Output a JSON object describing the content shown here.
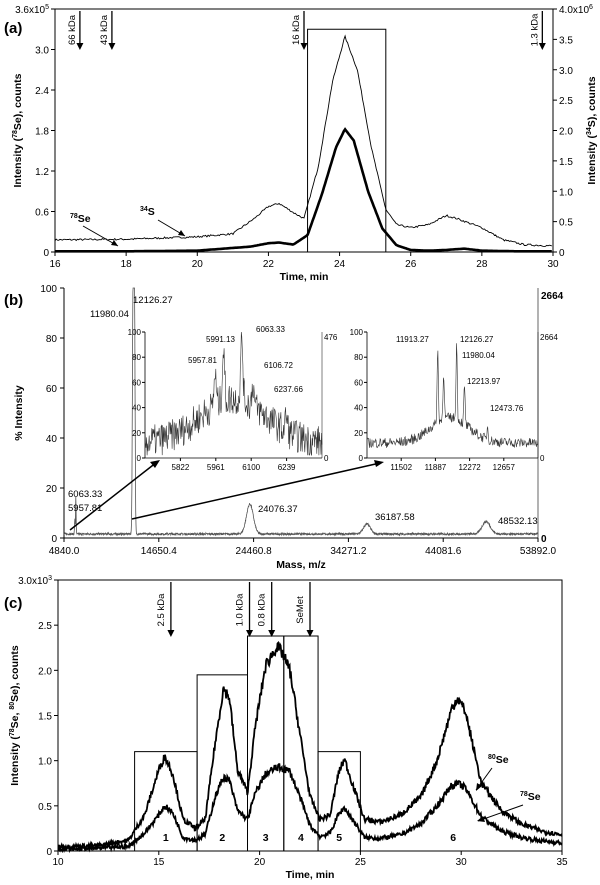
{
  "chart_data": [
    {
      "panel": "(a)",
      "type": "line",
      "xlabel": "Time, min",
      "ylabel_left": "Intensity (78Se), counts",
      "ylabel_right": "Intensity (34S), counts",
      "xlim": [
        16,
        30
      ],
      "ylim_left": [
        0,
        3.6
      ],
      "ylim_right": [
        0,
        4.0
      ],
      "x_ticks": [
        "16",
        "18",
        "20",
        "22",
        "24",
        "26",
        "28",
        "30"
      ],
      "y_ticks_left": [
        "0",
        "0.6",
        "1.2",
        "1.8",
        "2.4",
        "3.0",
        "3.6x10^5"
      ],
      "y_ticks_right": [
        "0",
        "0.5",
        "1.0",
        "1.5",
        "2.0",
        "2.5",
        "3.0",
        "3.5",
        "4.0x10^6"
      ],
      "series": [
        {
          "name": "78Se",
          "axis": "left",
          "style": "thick",
          "x": [
            16,
            18,
            20,
            21.5,
            22,
            22.3,
            22.7,
            23.1,
            23.5,
            23.9,
            24.15,
            24.4,
            24.8,
            25.2,
            25.6,
            26,
            26.5,
            27,
            27.5,
            28,
            29,
            30
          ],
          "y": [
            0.01,
            0.01,
            0.02,
            0.08,
            0.13,
            0.14,
            0.11,
            0.25,
            0.85,
            1.55,
            1.82,
            1.65,
            0.9,
            0.35,
            0.1,
            0.03,
            0.02,
            0.03,
            0.05,
            0.02,
            0.01,
            0.01
          ]
        },
        {
          "name": "34S",
          "axis": "right",
          "style": "thin",
          "x": [
            16,
            18,
            20,
            21,
            21.6,
            22,
            22.3,
            22.7,
            23,
            23.4,
            23.8,
            24.15,
            24.5,
            24.9,
            25.3,
            25.6,
            26,
            26.5,
            27,
            27.3,
            28,
            28.6,
            29.2,
            30
          ],
          "y": [
            0.2,
            0.21,
            0.25,
            0.3,
            0.55,
            0.75,
            0.8,
            0.65,
            0.55,
            1.4,
            2.8,
            3.55,
            3.0,
            1.7,
            0.7,
            0.45,
            0.4,
            0.45,
            0.6,
            0.55,
            0.4,
            0.2,
            0.12,
            0.1
          ]
        }
      ],
      "size_markers": [
        {
          "label": "66 kDa",
          "x": 16.7
        },
        {
          "label": "43 kDa",
          "x": 17.6
        },
        {
          "label": "16 kDa",
          "x": 23.0
        },
        {
          "label": "1.3 kDa",
          "x": 29.7
        }
      ],
      "collection_box": {
        "x_range": [
          23.1,
          25.3
        ],
        "y_top_left_units": 3.3
      },
      "series_labels": [
        "78Se",
        "34S"
      ]
    },
    {
      "panel": "(b)",
      "type": "line",
      "xlabel": "Mass, m/z",
      "ylabel": "% Intensity",
      "xlim": [
        4840.0,
        53892.0
      ],
      "ylim": [
        0,
        100
      ],
      "x_ticks": [
        "4840.0",
        "14650.4",
        "24460.8",
        "34271.2",
        "44081.6",
        "53892.0"
      ],
      "y_ticks": [
        "0",
        "20",
        "40",
        "60",
        "80",
        "100"
      ],
      "right_axis_labels": [
        "2664",
        "0"
      ],
      "peak_labels": [
        {
          "mass": 6063.33,
          "label": "6063.33",
          "intensity": 15
        },
        {
          "mass": 5957.81,
          "label": "5957.81",
          "intensity": 15
        },
        {
          "mass": 11980.04,
          "label": "11980.04",
          "intensity": 100
        },
        {
          "mass": 12126.27,
          "label": "12126.27",
          "intensity": 100
        },
        {
          "mass": 24076.37,
          "label": "24076.37",
          "intensity": 12
        },
        {
          "mass": 36187.58,
          "label": "36187.58",
          "intensity": 4
        },
        {
          "mass": 48532.13,
          "label": "48532.13",
          "intensity": 5
        }
      ],
      "insets": [
        {
          "name": "inset-low-mass",
          "xlim": [
            5683,
            6378
          ],
          "x_ticks": [
            "5822",
            "5961",
            "6100",
            "6239"
          ],
          "y_ticks": [
            "0",
            "20",
            "40",
            "60",
            "80",
            "100"
          ],
          "right_top_label": "476",
          "right_bottom_label": "0",
          "peak_labels": [
            {
              "mass": 5991.13,
              "label": "5991.13"
            },
            {
              "mass": 6063.33,
              "label": "6063.33"
            },
            {
              "mass": 5957.81,
              "label": "5957.81"
            },
            {
              "mass": 6106.72,
              "label": "6106.72"
            },
            {
              "mass": 6237.66,
              "label": "6237.66"
            }
          ]
        },
        {
          "name": "inset-high-mass",
          "xlim": [
            11117,
            13042
          ],
          "x_ticks": [
            "11502",
            "11887",
            "12272",
            "12657"
          ],
          "y_ticks": [
            "0",
            "20",
            "40",
            "60",
            "80",
            "100"
          ],
          "right_top_label": "2664",
          "right_bottom_label": "0",
          "peak_labels": [
            {
              "mass": 11913.27,
              "label": "11913.27"
            },
            {
              "mass": 12126.27,
              "label": "12126.27"
            },
            {
              "mass": 11980.04,
              "label": "11980.04"
            },
            {
              "mass": 12213.97,
              "label": "12213.97"
            },
            {
              "mass": 12473.76,
              "label": "12473.76"
            }
          ]
        }
      ]
    },
    {
      "panel": "(c)",
      "type": "line",
      "xlabel": "Time, min",
      "ylabel": "Intensity (78Se, 80Se), counts",
      "xlim": [
        10,
        35
      ],
      "ylim": [
        0,
        3.0
      ],
      "x_ticks": [
        "10",
        "15",
        "20",
        "25",
        "30",
        "35"
      ],
      "y_ticks": [
        "0",
        "0.5",
        "1.0",
        "1.5",
        "2.0",
        "2.5",
        "3.0x10^3"
      ],
      "series": [
        {
          "name": "80Se",
          "style": "thick",
          "x": [
            10,
            12,
            13.5,
            14.3,
            15,
            15.3,
            15.7,
            16.2,
            16.8,
            17.3,
            17.8,
            18.2,
            18.5,
            18.9,
            19.4,
            19.8,
            20.3,
            20.8,
            21.1,
            21.5,
            22.0,
            22.5,
            23.0,
            23.5,
            23.9,
            24.2,
            24.6,
            25.2,
            26,
            27,
            28,
            28.8,
            29.5,
            29.8,
            30.2,
            31,
            32,
            33,
            34,
            35
          ],
          "y": [
            0.05,
            0.06,
            0.12,
            0.4,
            0.9,
            1.05,
            0.85,
            0.35,
            0.25,
            0.35,
            1.2,
            1.8,
            1.7,
            0.9,
            0.65,
            1.4,
            2.05,
            2.25,
            2.2,
            2.0,
            1.3,
            0.6,
            0.35,
            0.4,
            0.85,
            1.02,
            0.75,
            0.35,
            0.32,
            0.4,
            0.6,
            1.0,
            1.55,
            1.7,
            1.55,
            0.75,
            0.45,
            0.3,
            0.22,
            0.18
          ]
        },
        {
          "name": "78Se",
          "style": "thick",
          "x": [
            10,
            12,
            13.5,
            14.3,
            15,
            15.3,
            15.7,
            16.2,
            16.8,
            17.3,
            17.8,
            18.2,
            18.5,
            18.9,
            19.4,
            19.8,
            20.3,
            20.8,
            21.1,
            21.5,
            22.0,
            22.5,
            23.0,
            23.5,
            23.9,
            24.2,
            24.6,
            25.2,
            26,
            27,
            28,
            28.8,
            29.5,
            29.8,
            30.2,
            31,
            32,
            33,
            34,
            35
          ],
          "y": [
            0.02,
            0.03,
            0.05,
            0.2,
            0.4,
            0.5,
            0.42,
            0.15,
            0.12,
            0.18,
            0.6,
            0.82,
            0.78,
            0.45,
            0.35,
            0.65,
            0.85,
            0.92,
            0.92,
            0.88,
            0.6,
            0.28,
            0.16,
            0.2,
            0.4,
            0.48,
            0.35,
            0.15,
            0.14,
            0.18,
            0.3,
            0.5,
            0.72,
            0.75,
            0.7,
            0.38,
            0.22,
            0.15,
            0.11,
            0.09
          ]
        }
      ],
      "size_markers": [
        {
          "label": "2.5 kDa",
          "x": 15.6
        },
        {
          "label": "1.0 kDa",
          "x": 19.5
        },
        {
          "label": "0.8 kDa",
          "x": 20.6
        },
        {
          "label": "SeMet",
          "x": 22.5
        }
      ],
      "fractions": [
        {
          "label": "1",
          "x_range": [
            13.8,
            16.9
          ],
          "box_top": 1.1
        },
        {
          "label": "2",
          "x_range": [
            16.9,
            19.4
          ],
          "box_top": 1.95
        },
        {
          "label": "3",
          "x_range": [
            19.4,
            21.2
          ],
          "box_top": 2.38
        },
        {
          "label": "4",
          "x_range": [
            21.2,
            22.9
          ],
          "box_top": 2.38
        },
        {
          "label": "5",
          "x_range": [
            22.9,
            25.0
          ],
          "box_top": 1.1
        },
        {
          "label": "6",
          "x_range": [
            25.0,
            35.0
          ],
          "box_top": null
        }
      ],
      "series_labels": [
        "80Se",
        "78Se"
      ]
    }
  ]
}
